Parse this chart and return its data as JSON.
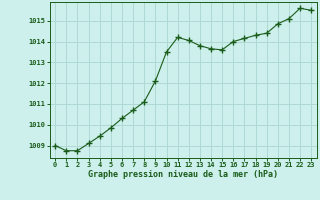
{
  "x": [
    0,
    1,
    2,
    3,
    4,
    5,
    6,
    7,
    8,
    9,
    10,
    11,
    12,
    13,
    14,
    15,
    16,
    17,
    18,
    19,
    20,
    21,
    22,
    23
  ],
  "y": [
    1009.0,
    1008.75,
    1008.75,
    1009.1,
    1009.45,
    1009.85,
    1010.3,
    1010.7,
    1011.1,
    1012.1,
    1013.5,
    1014.2,
    1014.05,
    1013.8,
    1013.65,
    1013.6,
    1014.0,
    1014.15,
    1014.3,
    1014.4,
    1014.85,
    1015.1,
    1015.6,
    1015.5
  ],
  "line_color": "#1a5c1a",
  "marker_color": "#1a5c1a",
  "bg_color": "#cdf0ec",
  "grid_color": "#b0d8d4",
  "axis_color": "#1a5c1a",
  "xlabel": "Graphe pression niveau de la mer (hPa)",
  "xlabel_color": "#1a5c1a",
  "ytick_labels": [
    "1009",
    "1010",
    "1011",
    "1012",
    "1013",
    "1014",
    "1015"
  ],
  "ytick_vals": [
    1009,
    1010,
    1011,
    1012,
    1013,
    1014,
    1015
  ],
  "xtick_vals": [
    0,
    1,
    2,
    3,
    4,
    5,
    6,
    7,
    8,
    9,
    10,
    11,
    12,
    13,
    14,
    15,
    16,
    17,
    18,
    19,
    20,
    21,
    22,
    23
  ],
  "ylim": [
    1008.4,
    1015.9
  ],
  "xlim": [
    -0.5,
    23.5
  ]
}
